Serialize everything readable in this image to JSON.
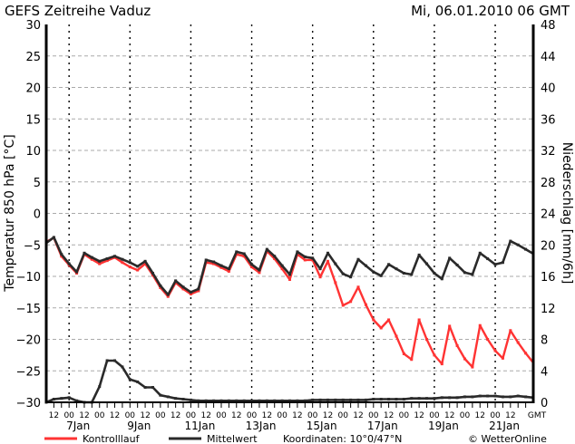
{
  "header": {
    "title": "GEFS Zeitreihe Vaduz",
    "datetime": "Mi, 06.01.2010 06 GMT"
  },
  "legend": {
    "control_label": "Kontrolllauf",
    "mean_label": "Mittelwert",
    "coordinates": "Koordinaten: 10°0/47°N",
    "copyright": "© WetterOnline"
  },
  "chart_data": {
    "type": "line",
    "title": "GEFS Zeitreihe Vaduz",
    "ylabel": "Temperatur 850 hPa [°C]",
    "y2label": "Niederschlag [mm/6h]",
    "ylim": [
      -30,
      30
    ],
    "y2lim": [
      0,
      48
    ],
    "yticks": [
      -30,
      -25,
      -20,
      -15,
      -10,
      -5,
      0,
      5,
      10,
      15,
      20,
      25,
      30
    ],
    "y2ticks": [
      0,
      4,
      8,
      12,
      16,
      20,
      24,
      28,
      32,
      36,
      40,
      44,
      48
    ],
    "xlim": [
      "2010-01-06 06Z",
      "2010-01-22 06Z"
    ],
    "x_hour_labels": [
      "12",
      "00",
      "12",
      "00",
      "12",
      "00",
      "12",
      "00",
      "12",
      "00",
      "12",
      "00",
      "12",
      "00",
      "12",
      "00",
      "12",
      "00",
      "12",
      "00",
      "12",
      "00",
      "12",
      "00",
      "12",
      "00",
      "12",
      "00",
      "12",
      "00",
      "12"
    ],
    "x_unit_label": "GMT",
    "x_day_labels": [
      "7Jan",
      "9Jan",
      "11Jan",
      "13Jan",
      "15Jan",
      "17Jan",
      "19Jan",
      "21Jan"
    ],
    "grid": true,
    "legend_placement": "bottom",
    "colors": {
      "control": "#ff3333",
      "mean": "#2a2a2a",
      "grid": "#aaaaaa"
    },
    "x": [
      "2010-01-06 06Z",
      "2010-01-06 12Z",
      "2010-01-06 18Z",
      "2010-01-07 00Z",
      "2010-01-07 06Z",
      "2010-01-07 12Z",
      "2010-01-07 18Z",
      "2010-01-08 00Z",
      "2010-01-08 06Z",
      "2010-01-08 12Z",
      "2010-01-08 18Z",
      "2010-01-09 00Z",
      "2010-01-09 06Z",
      "2010-01-09 12Z",
      "2010-01-09 18Z",
      "2010-01-10 00Z",
      "2010-01-10 06Z",
      "2010-01-10 12Z",
      "2010-01-10 18Z",
      "2010-01-11 00Z",
      "2010-01-11 06Z",
      "2010-01-11 12Z",
      "2010-01-11 18Z",
      "2010-01-12 00Z",
      "2010-01-12 06Z",
      "2010-01-12 12Z",
      "2010-01-12 18Z",
      "2010-01-13 00Z",
      "2010-01-13 06Z",
      "2010-01-13 12Z",
      "2010-01-13 18Z",
      "2010-01-14 00Z",
      "2010-01-14 06Z",
      "2010-01-14 12Z",
      "2010-01-14 18Z",
      "2010-01-15 00Z",
      "2010-01-15 06Z",
      "2010-01-15 12Z",
      "2010-01-15 18Z",
      "2010-01-16 00Z",
      "2010-01-16 06Z",
      "2010-01-16 12Z",
      "2010-01-16 18Z",
      "2010-01-17 00Z",
      "2010-01-17 06Z",
      "2010-01-17 12Z",
      "2010-01-17 18Z",
      "2010-01-18 00Z",
      "2010-01-18 06Z",
      "2010-01-18 12Z",
      "2010-01-18 18Z",
      "2010-01-19 00Z",
      "2010-01-19 06Z",
      "2010-01-19 12Z",
      "2010-01-19 18Z",
      "2010-01-20 00Z",
      "2010-01-20 06Z",
      "2010-01-20 12Z",
      "2010-01-20 18Z",
      "2010-01-21 00Z",
      "2010-01-21 06Z",
      "2010-01-21 12Z",
      "2010-01-21 18Z",
      "2010-01-22 00Z",
      "2010-01-22 06Z"
    ],
    "series": [
      {
        "name": "Mittelwert",
        "axis": "temperature",
        "values": [
          -4.7,
          -3.8,
          -6.5,
          -8,
          -9.3,
          -6.3,
          -7,
          -7.6,
          -7.2,
          -6.8,
          -7.3,
          -7.8,
          -8.4,
          -7.6,
          -9.5,
          -11.5,
          -12.9,
          -10.7,
          -11.7,
          -12.5,
          -12,
          -7.4,
          -7.7,
          -8.3,
          -8.8,
          -6.1,
          -6.4,
          -8.1,
          -9,
          -5.7,
          -6.8,
          -8.3,
          -9.7,
          -6.1,
          -6.9,
          -7.1,
          -8.8,
          -6.3,
          -8,
          -9.6,
          -10.1,
          -7.3,
          -8.3,
          -9.3,
          -9.9,
          -8.1,
          -8.8,
          -9.5,
          -9.7,
          -6.6,
          -8,
          -9.5,
          -10.4,
          -7.1,
          -8.2,
          -9.4,
          -9.7,
          -6.3,
          -7.2,
          -8.1,
          -7.8,
          -4.4,
          -5,
          -5.7,
          -6.4
        ]
      },
      {
        "name": "Kontrolllauf",
        "axis": "temperature",
        "values": [
          -4.5,
          -3.9,
          -6.8,
          -8.2,
          -9.5,
          -6.5,
          -7.3,
          -8,
          -7.5,
          -7,
          -7.8,
          -8.5,
          -9,
          -8,
          -9.8,
          -11.8,
          -13.2,
          -11,
          -12,
          -12.8,
          -12.3,
          -7.8,
          -8,
          -8.6,
          -9.2,
          -6.5,
          -6.8,
          -8.5,
          -9.4,
          -6,
          -7.2,
          -8.8,
          -10.5,
          -6.5,
          -7.4,
          -7.4,
          -10.1,
          -7.6,
          -11,
          -14.6,
          -14,
          -11.7,
          -14.5,
          -16.9,
          -18.2,
          -16.9,
          -19.5,
          -22.3,
          -23.2,
          -16.9,
          -20,
          -22.5,
          -23.9,
          -17.9,
          -21,
          -23.1,
          -24.4,
          -17.8,
          -20,
          -21.8,
          -23,
          -18.6,
          -20.5,
          -22.2,
          -23.7
        ]
      },
      {
        "name": "Mittelwert",
        "axis": "precipitation",
        "values": [
          0,
          0.4,
          0.5,
          0.6,
          0.2,
          0,
          0,
          2,
          5.3,
          5.3,
          4.5,
          2.9,
          2.6,
          1.9,
          1.9,
          0.9,
          0.7,
          0.5,
          0.4,
          0.3,
          0.2,
          0.2,
          0.2,
          0.2,
          0.2,
          0.2,
          0.2,
          0.2,
          0.2,
          0.2,
          0.2,
          0.2,
          0.2,
          0.2,
          0.2,
          0.3,
          0.3,
          0.3,
          0.3,
          0.3,
          0.3,
          0.3,
          0.3,
          0.4,
          0.4,
          0.4,
          0.4,
          0.4,
          0.5,
          0.5,
          0.5,
          0.5,
          0.6,
          0.6,
          0.6,
          0.7,
          0.7,
          0.8,
          0.8,
          0.8,
          0.7,
          0.7,
          0.8,
          0.7,
          0.6
        ]
      }
    ]
  }
}
